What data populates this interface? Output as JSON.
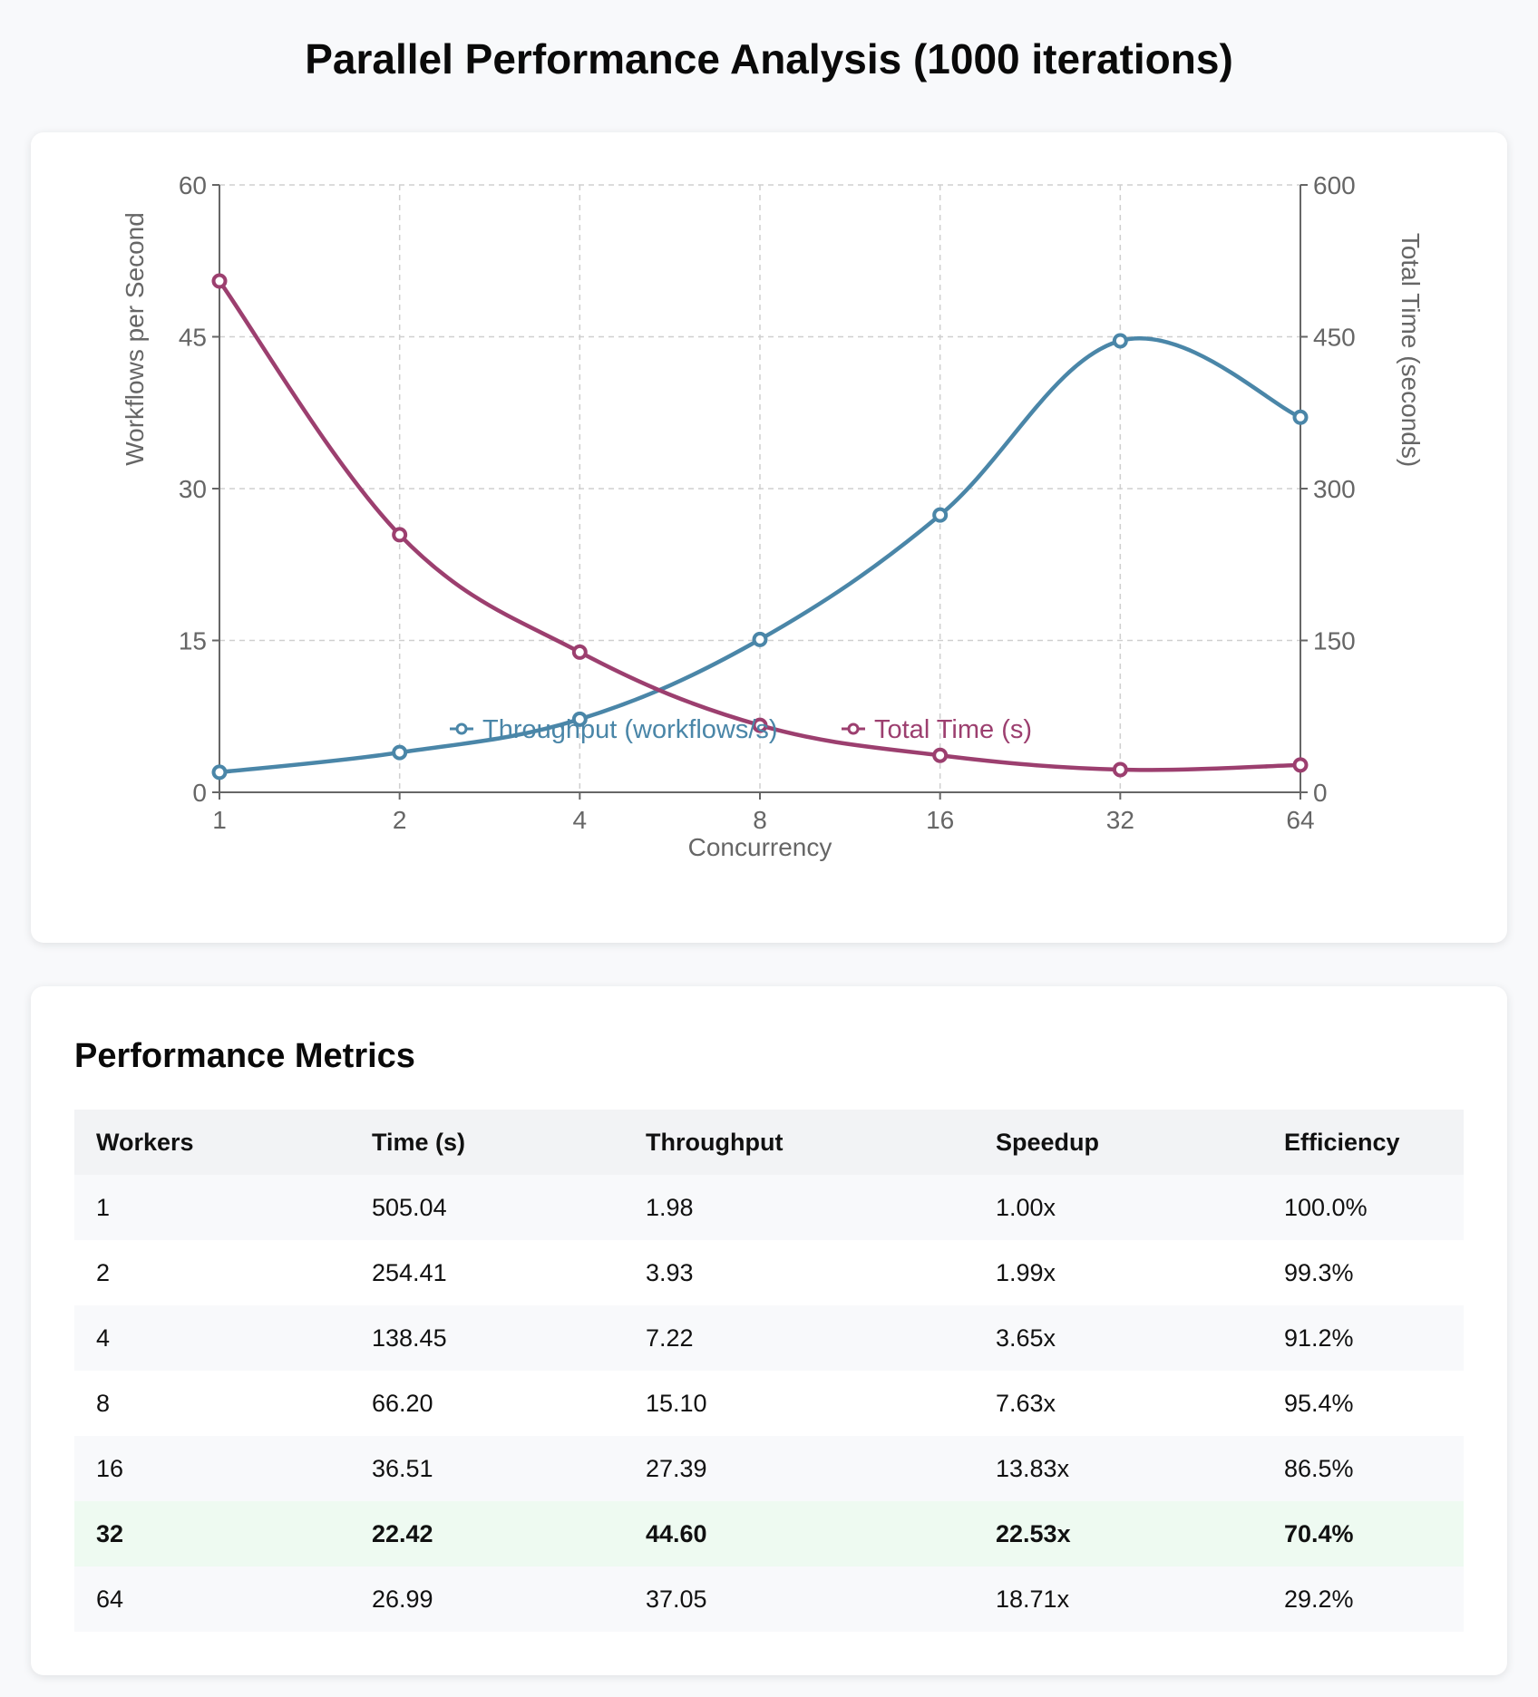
{
  "title": "Parallel Performance Analysis (1000 iterations)",
  "chart_data": {
    "type": "line",
    "categories": [
      "1",
      "2",
      "4",
      "8",
      "16",
      "32",
      "64"
    ],
    "xlabel": "Concurrency",
    "ylabel_left": "Workflows per Second",
    "ylabel_right": "Total Time (seconds)",
    "ylim_left": [
      0,
      60
    ],
    "ylim_right": [
      0,
      600
    ],
    "yticks_left": [
      "0",
      "15",
      "30",
      "45",
      "60"
    ],
    "yticks_right": [
      "0",
      "150",
      "300",
      "450",
      "600"
    ],
    "grid": true,
    "legend_position": "bottom",
    "series": [
      {
        "name": "Throughput (workflows/s)",
        "axis": "left",
        "color": "#4a86a8",
        "values": [
          1.98,
          3.93,
          7.22,
          15.1,
          27.39,
          44.6,
          37.05
        ]
      },
      {
        "name": "Total Time (s)",
        "axis": "right",
        "color": "#9c3f6f",
        "values": [
          505.04,
          254.41,
          138.45,
          66.2,
          36.51,
          22.42,
          26.99
        ]
      }
    ]
  },
  "metrics": {
    "title": "Performance Metrics",
    "columns": [
      "Workers",
      "Time (s)",
      "Throughput",
      "Speedup",
      "Efficiency"
    ],
    "highlight_row": 5,
    "rows": [
      [
        "1",
        "505.04",
        "1.98",
        "1.00x",
        "100.0%"
      ],
      [
        "2",
        "254.41",
        "3.93",
        "1.99x",
        "99.3%"
      ],
      [
        "4",
        "138.45",
        "7.22",
        "3.65x",
        "91.2%"
      ],
      [
        "8",
        "66.20",
        "15.10",
        "7.63x",
        "95.4%"
      ],
      [
        "16",
        "36.51",
        "27.39",
        "13.83x",
        "86.5%"
      ],
      [
        "32",
        "22.42",
        "44.60",
        "22.53x",
        "70.4%"
      ],
      [
        "64",
        "26.99",
        "37.05",
        "18.71x",
        "29.2%"
      ]
    ]
  }
}
